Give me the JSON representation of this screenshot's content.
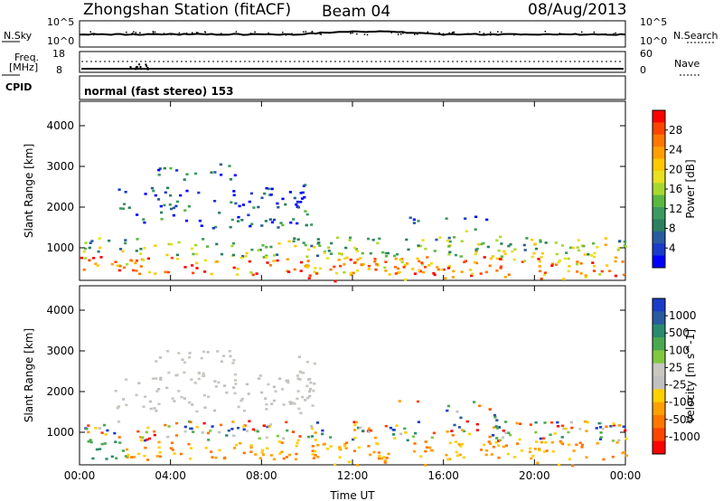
{
  "header": {
    "station": "Zhongshan Station (fitACF)",
    "beam": "Beam 04",
    "date": "08/Aug/2013"
  },
  "strip_panels": {
    "nsky_label": "N.Sky",
    "nsky_ticks": [
      "10^5",
      "10^0"
    ],
    "nsearch_label": "N.Search",
    "nsearch_ticks": [
      "10^5",
      "10^0"
    ],
    "freq_label": "Freq.",
    "freq_unit": "[MHz]",
    "freq_ticks": [
      "18",
      "8"
    ],
    "nave_label": "Nave",
    "nave_ticks": [
      "60",
      "0"
    ],
    "cpid_label": "CPID",
    "cpid_value": "normal (fast stereo) 153"
  },
  "chart_data": [
    {
      "type": "heatmap",
      "name": "power",
      "ylabel": "Slant Range [km]",
      "yticks": [
        "4000",
        "3000",
        "2000",
        "1000"
      ],
      "ylim": [
        200,
        4600
      ],
      "xlim": [
        0,
        24
      ],
      "xticks": [
        "00:00",
        "04:00",
        "08:00",
        "12:00",
        "16:00",
        "20:00",
        "00:00"
      ],
      "colorbar": {
        "label": "Power [dB]",
        "ticks": [
          "28",
          "24",
          "20",
          "16",
          "12",
          "8",
          "4"
        ],
        "colors": [
          "#ff0000",
          "#ff4400",
          "#ff7700",
          "#ffa000",
          "#ffc800",
          "#e8e020",
          "#a8d830",
          "#5ab840",
          "#3a9a60",
          "#2a8060",
          "#2a5aa0",
          "#1a3cc8",
          "#0000ff"
        ]
      }
    },
    {
      "type": "heatmap",
      "name": "velocity",
      "ylabel": "Slant Range [km]",
      "yticks": [
        "4000",
        "3000",
        "2000",
        "1000"
      ],
      "ylim": [
        200,
        4600
      ],
      "xlim": [
        0,
        24
      ],
      "xticks": [
        "00:00",
        "04:00",
        "08:00",
        "12:00",
        "16:00",
        "20:00",
        "00:00"
      ],
      "xlabel": "Time UT",
      "colorbar": {
        "label": "Velocity [m s^-1]",
        "ticks": [
          "1000",
          "500",
          "100",
          "25",
          "-25",
          "-100",
          "-500",
          "-1000"
        ],
        "colors": [
          "#1a3cc8",
          "#2a5aa0",
          "#2a8a70",
          "#4aa850",
          "#80c840",
          "#c8c8c0",
          "#c0c0c0",
          "#ffd000",
          "#ffa000",
          "#ff7700",
          "#ff4400",
          "#ff0000"
        ]
      }
    }
  ]
}
